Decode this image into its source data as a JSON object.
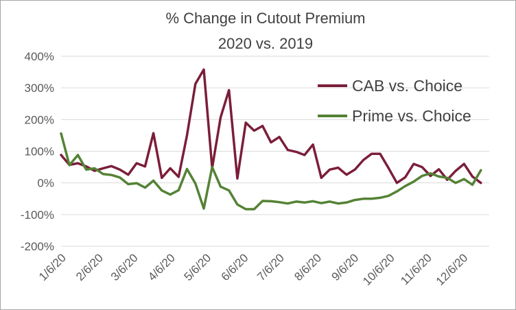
{
  "chart_data": {
    "type": "line",
    "title": "% Change in Cutout Premium",
    "subtitle": "2020 vs. 2019",
    "xlabel": "",
    "ylabel": "",
    "ylim": [
      -200,
      400
    ],
    "y_ticks": [
      -200,
      -100,
      0,
      100,
      200,
      300,
      400
    ],
    "y_tick_labels": [
      "-200%",
      "-100%",
      "0%",
      "100%",
      "200%",
      "300%",
      "400%"
    ],
    "x_ticks": [
      "2020-01-06",
      "2020-02-06",
      "2020-03-06",
      "2020-04-06",
      "2020-05-06",
      "2020-06-06",
      "2020-07-06",
      "2020-08-06",
      "2020-09-06",
      "2020-10-06",
      "2020-11-06",
      "2020-12-06"
    ],
    "x_tick_labels": [
      "1/6/20",
      "2/6/20",
      "3/6/20",
      "4/6/20",
      "5/6/20",
      "6/6/20",
      "7/6/20",
      "8/6/20",
      "9/6/20",
      "10/6/20",
      "11/6/20",
      "12/6/20"
    ],
    "xlim": [
      "2020-01-06",
      "2020-12-28"
    ],
    "grid": "horizontal",
    "legend": "right",
    "x": [
      "2020-01-06",
      "2020-01-13",
      "2020-01-20",
      "2020-01-27",
      "2020-02-03",
      "2020-02-10",
      "2020-02-17",
      "2020-02-24",
      "2020-03-02",
      "2020-03-09",
      "2020-03-16",
      "2020-03-23",
      "2020-03-30",
      "2020-04-06",
      "2020-04-13",
      "2020-04-20",
      "2020-04-27",
      "2020-05-04",
      "2020-05-11",
      "2020-05-18",
      "2020-05-25",
      "2020-06-01",
      "2020-06-08",
      "2020-06-15",
      "2020-06-22",
      "2020-06-29",
      "2020-07-06",
      "2020-07-13",
      "2020-07-20",
      "2020-07-27",
      "2020-08-03",
      "2020-08-10",
      "2020-08-17",
      "2020-08-24",
      "2020-08-31",
      "2020-09-07",
      "2020-09-14",
      "2020-09-21",
      "2020-09-28",
      "2020-10-05",
      "2020-10-12",
      "2020-10-19",
      "2020-10-26",
      "2020-11-02",
      "2020-11-09",
      "2020-11-16",
      "2020-11-23",
      "2020-11-30",
      "2020-12-07",
      "2020-12-14",
      "2020-12-21",
      "2020-12-28"
    ],
    "series": [
      {
        "name": "CAB vs. Choice",
        "color": "#7b1e3a",
        "values": [
          88,
          57,
          62,
          52,
          38,
          46,
          53,
          42,
          26,
          62,
          52,
          157,
          16,
          46,
          19,
          150,
          313,
          358,
          47,
          207,
          293,
          14,
          190,
          165,
          180,
          128,
          145,
          104,
          98,
          88,
          121,
          16,
          42,
          48,
          26,
          42,
          72,
          92,
          92,
          47,
          0,
          18,
          60,
          50,
          22,
          43,
          10,
          38,
          60,
          20,
          0,
          null
        ]
      },
      {
        "name": "Prime vs. Choice",
        "color": "#548235",
        "values": [
          156,
          56,
          88,
          42,
          46,
          28,
          25,
          17,
          -4,
          -1,
          -15,
          7,
          -24,
          -37,
          -23,
          44,
          -2,
          -81,
          50,
          -12,
          -24,
          -68,
          -83,
          -83,
          -57,
          -58,
          -61,
          -65,
          -59,
          -62,
          -58,
          -64,
          -59,
          -65,
          -62,
          -54,
          -50,
          -50,
          -47,
          -41,
          -27,
          -10,
          4,
          22,
          30,
          20,
          16,
          0,
          12,
          -6,
          40,
          null
        ]
      }
    ]
  }
}
